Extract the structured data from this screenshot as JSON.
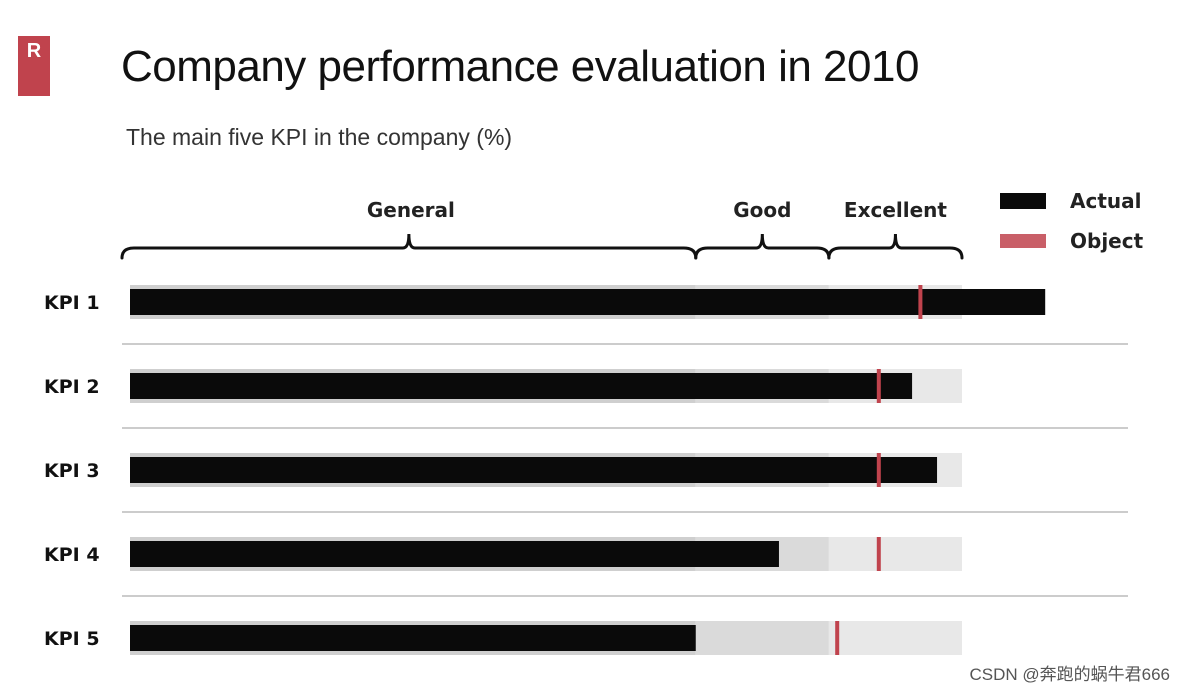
{
  "logo": {
    "text": "R"
  },
  "title": "Company performance evaluation in 2010",
  "subtitle": "The main five KPI in the company (%)",
  "watermark": "CSDN @奔跑的蜗牛君666",
  "colors": {
    "actual": "#0a0a0a",
    "object": "#c0434d",
    "band_general": "#cfcfcf",
    "band_good": "#dadada",
    "band_excellent": "#e8e8e8",
    "separator": "#bbbbbb",
    "brace": "#111111"
  },
  "chart_data": {
    "type": "bullet",
    "title": "Company performance evaluation in 2010",
    "subtitle": "The main five KPI in the company (%)",
    "xlim": [
      0,
      100
    ],
    "ranges": [
      {
        "name": "General",
        "from": 0,
        "to": 68
      },
      {
        "name": "Good",
        "from": 68,
        "to": 84
      },
      {
        "name": "Excellent",
        "from": 84,
        "to": 100
      }
    ],
    "legend": [
      {
        "name": "Actual",
        "color": "#0a0a0a",
        "shape": "bar"
      },
      {
        "name": "Object",
        "color": "#c0434d",
        "shape": "line"
      }
    ],
    "legend_position": "top-right",
    "categories": [
      "KPI 1",
      "KPI 2",
      "KPI 3",
      "KPI 4",
      "KPI 5"
    ],
    "series": [
      {
        "name": "Actual",
        "values": [
          110,
          94,
          97,
          78,
          68
        ]
      },
      {
        "name": "Object",
        "values": [
          95,
          90,
          90,
          90,
          85
        ]
      }
    ]
  }
}
